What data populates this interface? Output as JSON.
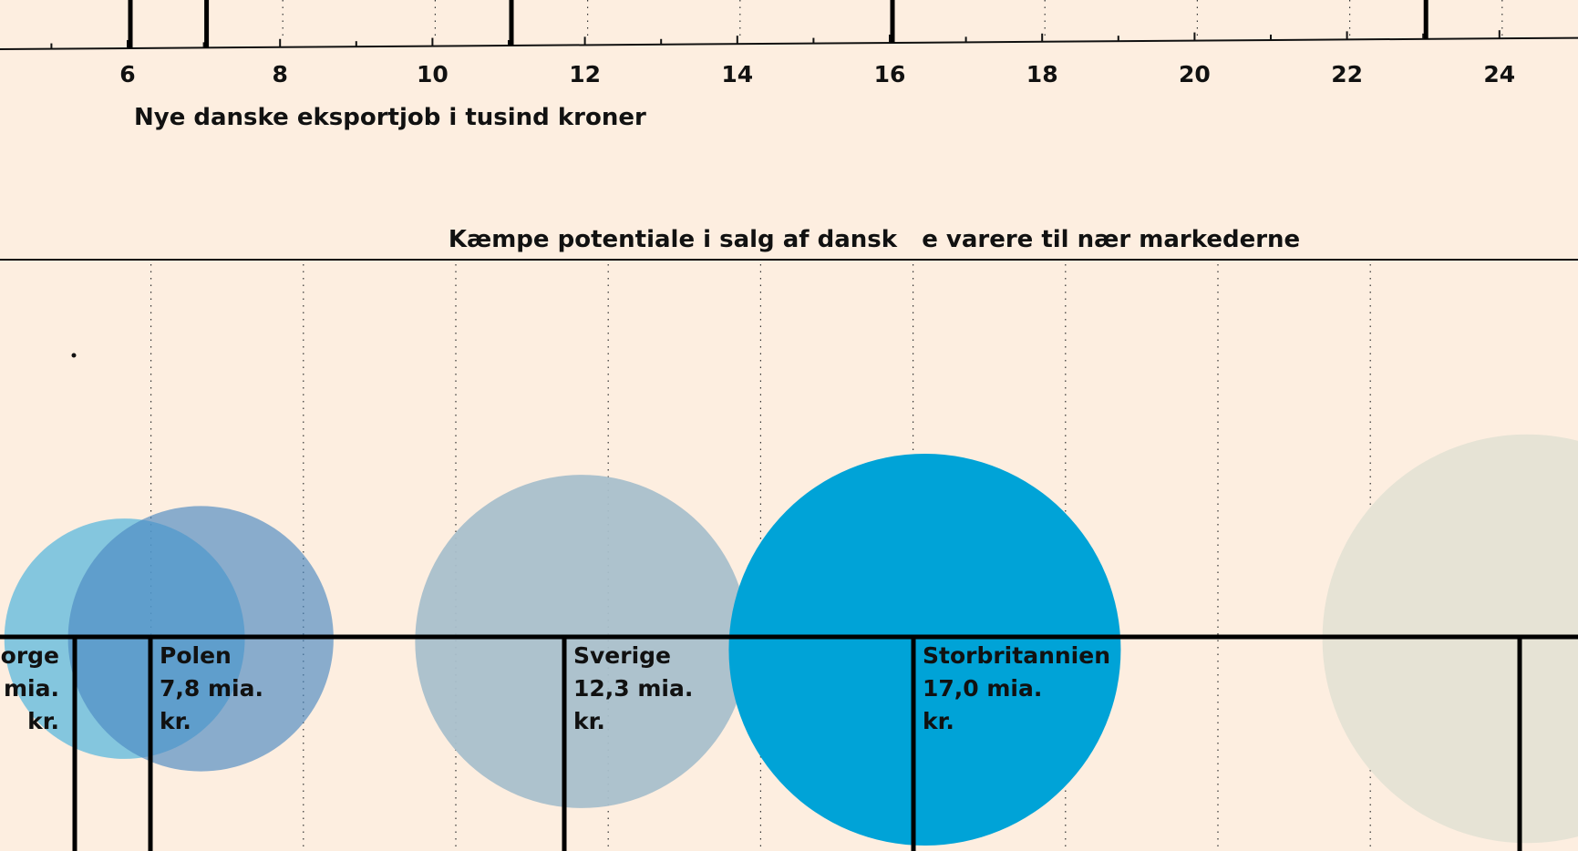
{
  "colors": {
    "background": "#fdeee0",
    "axis": "#111111",
    "grid": "#333333"
  },
  "top_axis": {
    "tick_labels": [
      "6",
      "8",
      "10",
      "12",
      "14",
      "16",
      "18",
      "20",
      "22",
      "24"
    ],
    "xlabel": "Nye danske eksportjob i tusind kroner"
  },
  "chart_data": {
    "type": "scatter",
    "title": "Kæmpe potentiale i salg af dansk   e varere til nær markederne",
    "xlabel": "Nye danske eksportjob i tusind kroner",
    "ylabel": "",
    "xlim": [
      4.3,
      25
    ],
    "x_tick_values": [
      6,
      8,
      10,
      12,
      14,
      16,
      18,
      20,
      22,
      24
    ],
    "grid": true,
    "top_axis_markers": [
      6,
      7,
      11,
      16,
      23
    ],
    "series": [
      {
        "label_lines": [
          "Norge",
          "mia.",
          "kr."
        ],
        "x": 5.9,
        "value_mia_kr": 6.4,
        "color": "#5bb8de",
        "opacity": 0.75,
        "label_align": "right"
      },
      {
        "label_lines": [
          "Polen",
          "7,8 mia.",
          "kr."
        ],
        "x": 6.9,
        "value_mia_kr": 7.8,
        "color": "#4b88c2",
        "opacity": 0.65,
        "label_align": "left"
      },
      {
        "label_lines": [
          "Sverige",
          "12,3 mia.",
          "kr."
        ],
        "x": 11.9,
        "value_mia_kr": 12.3,
        "color": "#a9bfcb",
        "opacity": 0.95,
        "label_align": "left"
      },
      {
        "label_lines": [
          "Storbritannien",
          "17,0 mia.",
          "kr."
        ],
        "x": 16.4,
        "value_mia_kr": 17.0,
        "color": "#00a3d7",
        "opacity": 1.0,
        "label_align": "left"
      },
      {
        "label_lines": [],
        "x": 24.3,
        "value_mia_kr": 18.5,
        "color": "#e6e3d5",
        "opacity": 1.0,
        "label_align": "left"
      }
    ]
  }
}
